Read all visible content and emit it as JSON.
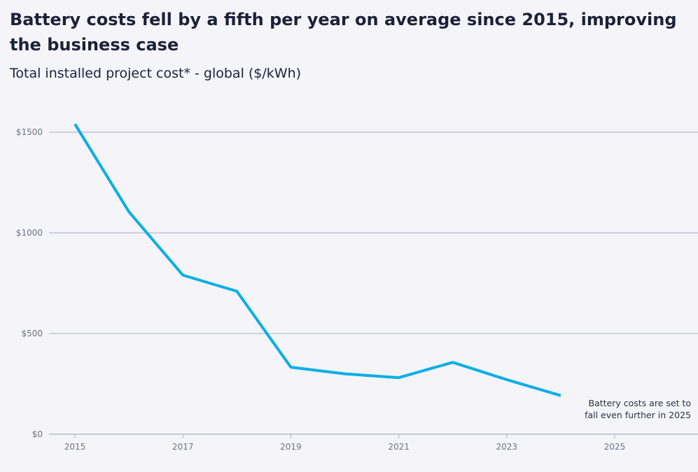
{
  "chart_data": {
    "type": "line",
    "title": "Battery costs fell by a fifth per year on average since 2015, improving the business case",
    "title_lines": [
      "Battery costs fell by a fifth per year on average since 2015, improving",
      "the business case"
    ],
    "subtitle": "Total installed project cost* - global ($/kWh)",
    "xlabel": "",
    "ylabel": "",
    "x": [
      2015,
      2016,
      2017,
      2018,
      2019,
      2020,
      2021,
      2022,
      2023,
      2024
    ],
    "values": [
      1540,
      1105,
      790,
      710,
      333,
      300,
      281,
      357,
      271,
      192
    ],
    "xlim": [
      2014.5,
      2026.5
    ],
    "ylim": [
      0,
      1540
    ],
    "x_ticks": [
      "2015",
      "2017",
      "2019",
      "2021",
      "2023",
      "2025"
    ],
    "y_ticks": [
      {
        "value": 0,
        "label": "$0"
      },
      {
        "value": 500,
        "label": "$500"
      },
      {
        "value": 1000,
        "label": "$1000"
      },
      {
        "value": 1500,
        "label": "$1500"
      }
    ],
    "grid": "horizontal",
    "line_color": "#0aaee6",
    "annotation": [
      "Battery costs are set to",
      "fall even further in 2025"
    ]
  }
}
